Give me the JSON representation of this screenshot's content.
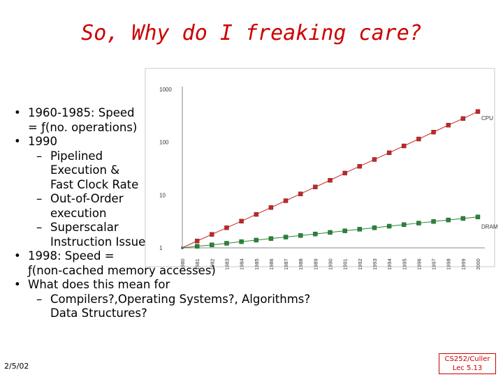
{
  "slide": {
    "title": "So, Why do I freaking care?",
    "bullets": [
      {
        "level": 1,
        "lines": [
          "1960-1985: Speed",
          "= ƒ(no. operations)"
        ]
      },
      {
        "level": 1,
        "lines": [
          "1990"
        ]
      },
      {
        "level": 2,
        "lines": [
          "Pipelined",
          "Execution &",
          "Fast Clock Rate"
        ]
      },
      {
        "level": 2,
        "lines": [
          "Out-of-Order",
          "execution"
        ]
      },
      {
        "level": 2,
        "lines": [
          "Superscalar",
          "Instruction Issue"
        ]
      },
      {
        "level": 1,
        "lines": [
          "1998: Speed =",
          "ƒ(non-cached memory accesses)"
        ]
      },
      {
        "level": 1,
        "lines": [
          "What does this mean for"
        ]
      },
      {
        "level": 2,
        "lines": [
          "Compilers?,Operating Systems?, Algorithms?",
          "Data Structures?"
        ]
      }
    ],
    "bullet_marker": "•",
    "sub_marker": "–",
    "date": "2/5/02",
    "course_line1": "CS252/Culler",
    "course_line2": "Lec 5.13"
  },
  "colors": {
    "title": "#cc0000",
    "cpu_series": "#cc2222",
    "dram_series": "#228833",
    "footer": "#cc0000"
  },
  "chart_data": {
    "type": "line",
    "yscale": "log",
    "ylim": [
      1,
      1000
    ],
    "yticks": [
      "1000",
      "100",
      "10",
      "1"
    ],
    "ytick_values": [
      1000,
      100,
      10,
      1
    ],
    "categories": [
      "1980",
      "1981",
      "1982",
      "1983",
      "1984",
      "1985",
      "1986",
      "1987",
      "1988",
      "1989",
      "1990",
      "1991",
      "1992",
      "1993",
      "1994",
      "1995",
      "1996",
      "1997",
      "1998",
      "1999",
      "2000"
    ],
    "series": [
      {
        "name": "CPU",
        "values": [
          1,
          1.35,
          1.8,
          2.4,
          3.2,
          4.3,
          5.8,
          7.8,
          10.5,
          14.2,
          19,
          26,
          35,
          47,
          63,
          85,
          115,
          155,
          210,
          280,
          380
        ]
      },
      {
        "name": "DRAM",
        "values": [
          1,
          1.07,
          1.14,
          1.22,
          1.31,
          1.4,
          1.5,
          1.6,
          1.71,
          1.83,
          1.96,
          2.1,
          2.25,
          2.4,
          2.57,
          2.75,
          2.94,
          3.15,
          3.37,
          3.6,
          3.85
        ]
      }
    ]
  }
}
